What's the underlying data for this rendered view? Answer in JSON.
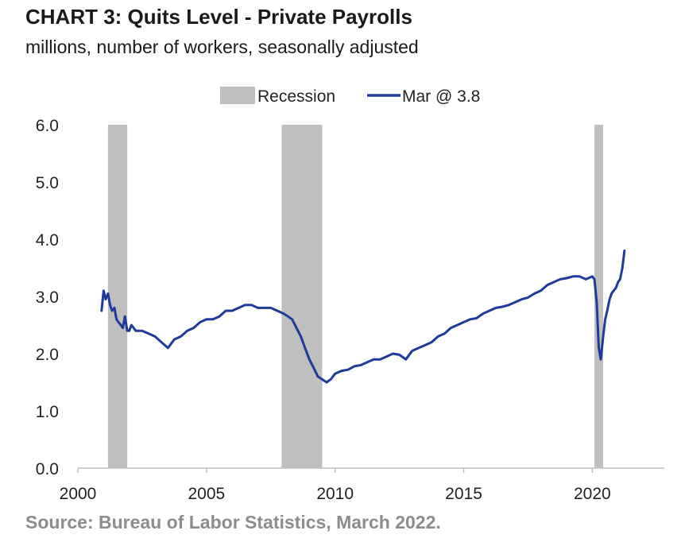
{
  "title": "CHART 3: Quits Level - Private Payrolls",
  "subtitle": "millions, number of workers, seasonally adjusted",
  "source": "Source: Bureau of Labor Statistics, March 2022.",
  "colors": {
    "line": "#1f3a9a",
    "recession": "#bfbfbf",
    "axis": "#bfbfbf",
    "text": "#222222",
    "source": "#8c8c8c"
  },
  "chart_data": {
    "type": "line",
    "title": "CHART 3: Quits Level - Private Payrolls",
    "subtitle": "millions, number of workers, seasonally adjusted",
    "xlabel": "",
    "ylabel": "",
    "xlim": [
      2000,
      2022.8
    ],
    "ylim": [
      0,
      6
    ],
    "grid": false,
    "legend_position": "top-center",
    "legend": [
      "Recession",
      "Mar @ 3.8"
    ],
    "x_ticks": [
      2000,
      2005,
      2010,
      2015,
      2020
    ],
    "x_tick_labels": [
      "2000",
      "2005",
      "2010",
      "2015",
      "2020"
    ],
    "y_ticks": [
      0,
      1,
      2,
      3,
      4,
      5,
      6
    ],
    "y_tick_labels": [
      "0.0",
      "1.0",
      "2.0",
      "3.0",
      "4.0",
      "5.0",
      "6.0"
    ],
    "recessions": [
      {
        "start": 2001.17,
        "end": 2001.92
      },
      {
        "start": 2007.92,
        "end": 2009.5
      },
      {
        "start": 2020.08,
        "end": 2020.42
      }
    ],
    "series": [
      {
        "name": "Mar @ 3.8",
        "x": [
          2000.92,
          2001.0,
          2001.08,
          2001.17,
          2001.25,
          2001.33,
          2001.42,
          2001.5,
          2001.58,
          2001.67,
          2001.75,
          2001.83,
          2001.92,
          2002.0,
          2002.08,
          2002.17,
          2002.25,
          2002.5,
          2002.75,
          2003.0,
          2003.25,
          2003.5,
          2003.75,
          2004.0,
          2004.25,
          2004.5,
          2004.75,
          2005.0,
          2005.25,
          2005.5,
          2005.75,
          2006.0,
          2006.25,
          2006.5,
          2006.75,
          2007.0,
          2007.25,
          2007.5,
          2007.75,
          2008.0,
          2008.17,
          2008.33,
          2008.5,
          2008.67,
          2008.83,
          2009.0,
          2009.17,
          2009.33,
          2009.5,
          2009.67,
          2009.83,
          2010.0,
          2010.25,
          2010.5,
          2010.75,
          2011.0,
          2011.25,
          2011.5,
          2011.75,
          2012.0,
          2012.25,
          2012.5,
          2012.75,
          2013.0,
          2013.25,
          2013.5,
          2013.75,
          2014.0,
          2014.25,
          2014.5,
          2014.75,
          2015.0,
          2015.25,
          2015.5,
          2015.75,
          2016.0,
          2016.25,
          2016.5,
          2016.75,
          2017.0,
          2017.25,
          2017.5,
          2017.75,
          2018.0,
          2018.25,
          2018.5,
          2018.75,
          2019.0,
          2019.25,
          2019.5,
          2019.75,
          2020.0,
          2020.08,
          2020.17,
          2020.25,
          2020.33,
          2020.42,
          2020.5,
          2020.58,
          2020.67,
          2020.75,
          2020.83,
          2020.92,
          2021.0,
          2021.08,
          2021.17,
          2021.25
        ],
        "values": [
          2.75,
          3.1,
          2.95,
          3.05,
          2.85,
          2.75,
          2.8,
          2.6,
          2.55,
          2.5,
          2.45,
          2.65,
          2.4,
          2.4,
          2.5,
          2.45,
          2.4,
          2.4,
          2.35,
          2.3,
          2.2,
          2.1,
          2.25,
          2.3,
          2.4,
          2.45,
          2.55,
          2.6,
          2.6,
          2.65,
          2.75,
          2.75,
          2.8,
          2.85,
          2.85,
          2.8,
          2.8,
          2.8,
          2.75,
          2.7,
          2.65,
          2.6,
          2.45,
          2.3,
          2.1,
          1.9,
          1.75,
          1.6,
          1.55,
          1.5,
          1.55,
          1.65,
          1.7,
          1.72,
          1.78,
          1.8,
          1.85,
          1.9,
          1.9,
          1.95,
          2.0,
          1.98,
          1.9,
          2.05,
          2.1,
          2.15,
          2.2,
          2.3,
          2.35,
          2.45,
          2.5,
          2.55,
          2.6,
          2.62,
          2.7,
          2.75,
          2.8,
          2.82,
          2.85,
          2.9,
          2.95,
          2.98,
          3.05,
          3.1,
          3.2,
          3.25,
          3.3,
          3.32,
          3.35,
          3.35,
          3.3,
          3.35,
          3.3,
          2.9,
          2.1,
          1.9,
          2.3,
          2.6,
          2.75,
          2.95,
          3.05,
          3.1,
          3.15,
          3.25,
          3.3,
          3.5,
          3.8
        ]
      }
    ]
  }
}
